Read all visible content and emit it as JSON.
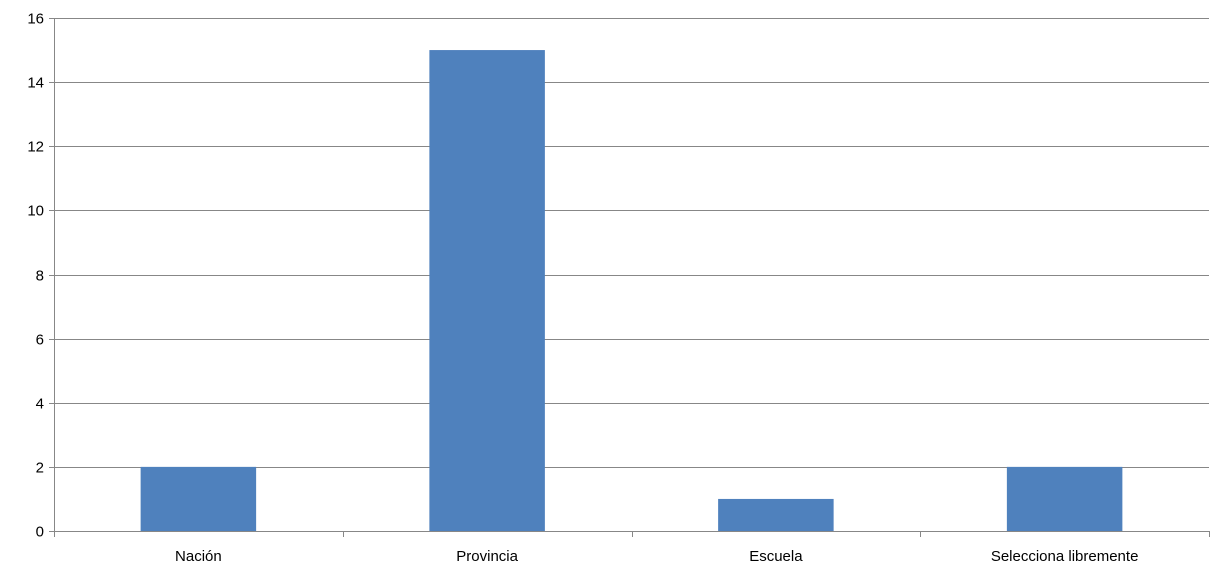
{
  "chart_data": {
    "type": "bar",
    "title": "",
    "xlabel": "",
    "ylabel": "",
    "categories": [
      "Nación",
      "Provincia",
      "Escuela",
      "Selecciona libremente"
    ],
    "values": [
      2,
      15,
      1,
      2
    ],
    "ylim": [
      0,
      16
    ],
    "yticks": [
      0,
      2,
      4,
      6,
      8,
      10,
      12,
      14,
      16
    ],
    "grid": true,
    "legend": "none",
    "bar_color": "#4F81BD",
    "grid_color": "#878787"
  }
}
